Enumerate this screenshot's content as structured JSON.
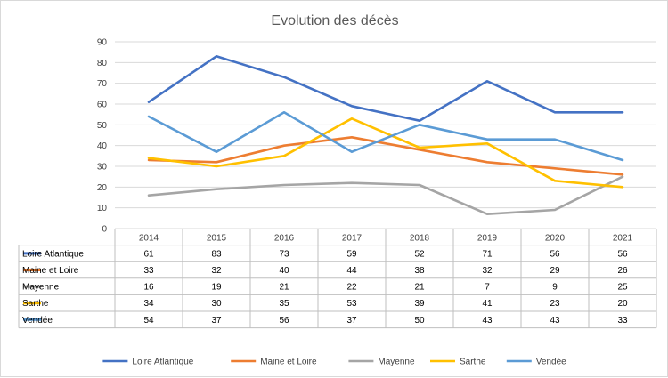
{
  "chart_data": {
    "type": "line",
    "title": "Evolution des décès",
    "xlabel": "",
    "ylabel": "",
    "categories": [
      "2014",
      "2015",
      "2016",
      "2017",
      "2018",
      "2019",
      "2020",
      "2021"
    ],
    "ylim": [
      0,
      90
    ],
    "yticks": [
      0,
      10,
      20,
      30,
      40,
      50,
      60,
      70,
      80,
      90
    ],
    "grid": true,
    "legend_position": "bottom",
    "data_table": true,
    "series": [
      {
        "name": "Loire Atlantique",
        "color": "#4472C4",
        "values": [
          61,
          83,
          73,
          59,
          52,
          71,
          56,
          56
        ]
      },
      {
        "name": "Maine et Loire",
        "color": "#ED7D31",
        "values": [
          33,
          32,
          40,
          44,
          38,
          32,
          29,
          26
        ]
      },
      {
        "name": "Mayenne",
        "color": "#A5A5A5",
        "values": [
          16,
          19,
          21,
          22,
          21,
          7,
          9,
          25
        ]
      },
      {
        "name": "Sarthe",
        "color": "#FFC000",
        "values": [
          34,
          30,
          35,
          53,
          39,
          41,
          23,
          20
        ]
      },
      {
        "name": "Vendée",
        "color": "#5B9BD5",
        "values": [
          54,
          37,
          56,
          37,
          50,
          43,
          43,
          33
        ]
      }
    ]
  }
}
